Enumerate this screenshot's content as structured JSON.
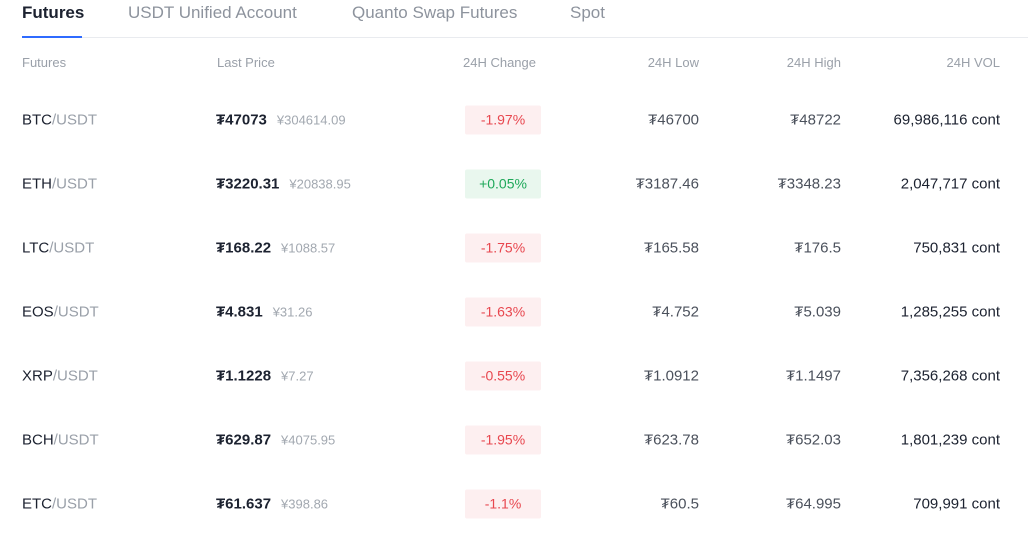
{
  "tabs": [
    {
      "label": "Futures",
      "active": true
    },
    {
      "label": "USDT Unified Account",
      "active": false
    },
    {
      "label": "Quanto Swap Futures",
      "active": false
    },
    {
      "label": "Spot",
      "active": false
    }
  ],
  "table": {
    "headers": {
      "pair": "Futures",
      "last_price": "Last Price",
      "change": "24H Change",
      "low": "24H Low",
      "high": "24H High",
      "vol": "24H VOL"
    },
    "rows": [
      {
        "base": "BTC",
        "quote": "/USDT",
        "last": "₮47073",
        "cny": "¥304614.09",
        "change": "-1.97%",
        "direction": "neg",
        "low": "₮46700",
        "high": "₮48722",
        "vol": "69,986,116 cont"
      },
      {
        "base": "ETH",
        "quote": "/USDT",
        "last": "₮3220.31",
        "cny": "¥20838.95",
        "change": "+0.05%",
        "direction": "pos",
        "low": "₮3187.46",
        "high": "₮3348.23",
        "vol": "2,047,717 cont"
      },
      {
        "base": "LTC",
        "quote": "/USDT",
        "last": "₮168.22",
        "cny": "¥1088.57",
        "change": "-1.75%",
        "direction": "neg",
        "low": "₮165.58",
        "high": "₮176.5",
        "vol": "750,831 cont"
      },
      {
        "base": "EOS",
        "quote": "/USDT",
        "last": "₮4.831",
        "cny": "¥31.26",
        "change": "-1.63%",
        "direction": "neg",
        "low": "₮4.752",
        "high": "₮5.039",
        "vol": "1,285,255 cont"
      },
      {
        "base": "XRP",
        "quote": "/USDT",
        "last": "₮1.1228",
        "cny": "¥7.27",
        "change": "-0.55%",
        "direction": "neg",
        "low": "₮1.0912",
        "high": "₮1.1497",
        "vol": "7,356,268 cont"
      },
      {
        "base": "BCH",
        "quote": "/USDT",
        "last": "₮629.87",
        "cny": "¥4075.95",
        "change": "-1.95%",
        "direction": "neg",
        "low": "₮623.78",
        "high": "₮652.03",
        "vol": "1,801,239 cont"
      },
      {
        "base": "ETC",
        "quote": "/USDT",
        "last": "₮61.637",
        "cny": "¥398.86",
        "change": "-1.1%",
        "direction": "neg",
        "low": "₮60.5",
        "high": "₮64.995",
        "vol": "709,991 cont"
      }
    ]
  },
  "colors": {
    "accent": "#2f6bff",
    "negative": "#e8474f",
    "positive": "#1fa85a"
  }
}
